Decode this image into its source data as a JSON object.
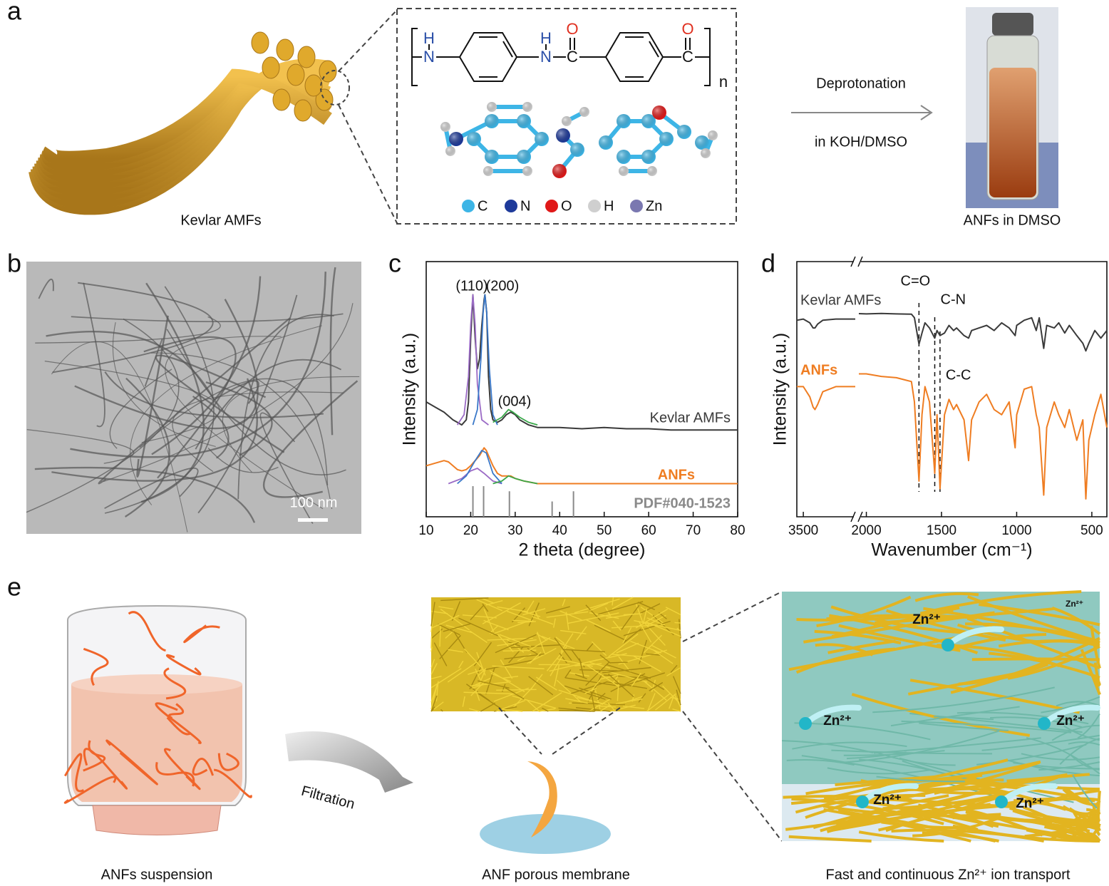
{
  "panel_labels": [
    "a",
    "b",
    "c",
    "d",
    "e"
  ],
  "panel_a": {
    "fiber_label": "Kevlar AMFs",
    "structure": {
      "atoms": [
        "H",
        "N",
        "H",
        "N",
        "O",
        "C",
        "O",
        "C"
      ],
      "repeat": "n"
    },
    "atom_legend": [
      "C",
      "N",
      "O",
      "H",
      "Zn"
    ],
    "arrow_top": "Deprotonation",
    "arrow_bottom": "in KOH/DMSO",
    "vial_label": "ANFs in DMSO"
  },
  "panel_b": {
    "scale_bar": "100 nm"
  },
  "chart_data": [
    {
      "type": "line",
      "xlabel": "2 theta (degree)",
      "ylabel": "Intensity (a.u.)",
      "xlim": [
        10,
        80
      ],
      "ylim": [
        0,
        100
      ],
      "xticks": [
        10,
        20,
        30,
        40,
        50,
        60,
        70,
        80
      ],
      "annotations": [
        "(110)",
        "(200)",
        "(004)"
      ],
      "series": [
        {
          "name": "Kevlar AMFs",
          "color": "#3a3a3a",
          "x": [
            10,
            12,
            14,
            16,
            17,
            18,
            19,
            19.5,
            20,
            20.5,
            21,
            21.5,
            22,
            22.5,
            23,
            23.2,
            23.6,
            24,
            24.5,
            25,
            26,
            27,
            28,
            29,
            30,
            31,
            33,
            35,
            40,
            45,
            50,
            55,
            60,
            65,
            70,
            75,
            80
          ],
          "values": [
            45,
            43,
            41,
            38,
            37,
            36,
            38,
            45,
            70,
            87,
            70,
            58,
            62,
            75,
            85,
            87,
            80,
            55,
            42,
            38,
            37,
            38,
            40,
            41,
            40,
            38,
            36,
            35,
            35,
            34.5,
            35,
            34.5,
            34.5,
            34,
            34,
            34,
            34
          ]
        },
        {
          "color": "#9b6bc6",
          "x": [
            17,
            18.5,
            19.5,
            20,
            20.5,
            21,
            21.5,
            22.5,
            24
          ],
          "values": [
            36,
            40,
            55,
            75,
            87,
            75,
            52,
            38,
            36
          ]
        },
        {
          "color": "#3a78c9",
          "x": [
            20.5,
            21.5,
            22.3,
            22.8,
            23.2,
            23.6,
            24.2,
            25,
            26
          ],
          "values": [
            36,
            42,
            62,
            80,
            87,
            80,
            58,
            40,
            36
          ]
        },
        {
          "color": "#3aa84a",
          "x": [
            25,
            27,
            28.5,
            29.5,
            31,
            33,
            35
          ],
          "values": [
            37,
            39,
            42,
            41,
            39,
            37,
            36
          ]
        },
        {
          "name": "ANFs",
          "color": "#ef7d22",
          "x": [
            10,
            12,
            14,
            15,
            16,
            17,
            18,
            19,
            20,
            21,
            22,
            23,
            23.5,
            24,
            25,
            26,
            27,
            28,
            29,
            30,
            32,
            35,
            40,
            50,
            60,
            70,
            80
          ],
          "values": [
            20,
            21,
            22,
            21.5,
            20,
            18.5,
            18,
            18.5,
            20,
            22,
            24,
            27,
            26,
            24,
            20,
            17,
            16,
            16,
            16,
            15,
            14,
            13,
            13,
            13,
            13,
            13,
            13
          ]
        },
        {
          "color": "#9b6bc6",
          "x": [
            15,
            18,
            20,
            21.5,
            23,
            25,
            27
          ],
          "values": [
            13,
            15,
            18,
            19,
            17,
            14,
            13
          ]
        },
        {
          "color": "#3a78c9",
          "x": [
            17,
            19,
            21,
            22.5,
            23.5,
            25,
            27
          ],
          "values": [
            13,
            16,
            22,
            26,
            25,
            17,
            13
          ]
        },
        {
          "color": "#3aa84a",
          "x": [
            25,
            27,
            28.5,
            30,
            32,
            35
          ],
          "values": [
            13,
            14,
            16,
            15,
            14,
            13
          ]
        },
        {
          "name": "PDF#040-1523",
          "color": "#8a8a8a",
          "kind": "stick",
          "x": [
            20.5,
            22.9,
            28.7,
            38.3,
            43.1
          ],
          "values": [
            12,
            12,
            10,
            6,
            10
          ]
        }
      ]
    },
    {
      "type": "line",
      "xlabel": "Wavenumber (cm⁻¹)",
      "ylabel": "Intensity (a.u.)",
      "xlim": [
        3600,
        400
      ],
      "xbreak": [
        2700,
        2050
      ],
      "ylim": [
        0,
        100
      ],
      "xticks": [
        3500,
        2000,
        1500,
        1000,
        500
      ],
      "markers": [
        {
          "label": "C=O",
          "x": 1650
        },
        {
          "label": "C-N",
          "x": 1545
        },
        {
          "label": "C-C",
          "x": 1510
        }
      ],
      "x": [
        3600,
        3500,
        3400,
        3350,
        3320,
        3280,
        3200,
        3000,
        2800,
        2700,
        2400,
        2050,
        2000,
        1900,
        1800,
        1700,
        1680,
        1650,
        1630,
        1610,
        1580,
        1545,
        1530,
        1510,
        1480,
        1450,
        1420,
        1400,
        1350,
        1320,
        1300,
        1250,
        1200,
        1150,
        1100,
        1050,
        1010,
        1000,
        950,
        900,
        870,
        850,
        820,
        800,
        750,
        720,
        680,
        650,
        600,
        560,
        540,
        520,
        480,
        440,
        400
      ],
      "series": [
        {
          "name": "Kevlar AMFs",
          "color": "#3a3a3a",
          "values": [
            77,
            77.5,
            76,
            74,
            74,
            75.5,
            77,
            77.5,
            77.5,
            77.5,
            null,
            79.6,
            79.5,
            79.7,
            79.5,
            79.4,
            78,
            67.6,
            72,
            76,
            74,
            70,
            73,
            71,
            72,
            75,
            73,
            74,
            71,
            70,
            73,
            74,
            75,
            73,
            76,
            74,
            71,
            75,
            77,
            78,
            73,
            78,
            66,
            75,
            74,
            76,
            72,
            75,
            71,
            68,
            65,
            68,
            73,
            70,
            73
          ]
        },
        {
          "name": "ANFs",
          "color": "#ef7d22",
          "values": [
            51,
            51,
            47,
            43,
            42,
            44,
            49,
            51,
            51,
            51,
            null,
            56,
            56,
            55,
            54.5,
            53,
            45,
            14,
            40,
            51,
            45,
            17,
            40,
            11,
            40,
            46,
            42,
            44,
            38,
            22,
            38,
            45,
            48,
            42,
            40,
            45,
            27,
            40,
            50,
            51,
            40,
            35,
            8.5,
            35,
            45,
            40,
            35,
            42,
            30,
            38,
            7,
            30,
            40,
            48,
            35
          ]
        }
      ]
    }
  ],
  "panel_e": {
    "beaker_label": "ANFs suspension",
    "arrow_label": "Filtration",
    "membrane_label": "ANF porous membrane",
    "transport_label": "Fast and continuous Zn²⁺ ion transport",
    "ion_labels": [
      "Zn²⁺",
      "Zn²⁺",
      "Zn²⁺",
      "Zn²⁺",
      "Zn²⁺",
      "Zn²⁺"
    ]
  }
}
